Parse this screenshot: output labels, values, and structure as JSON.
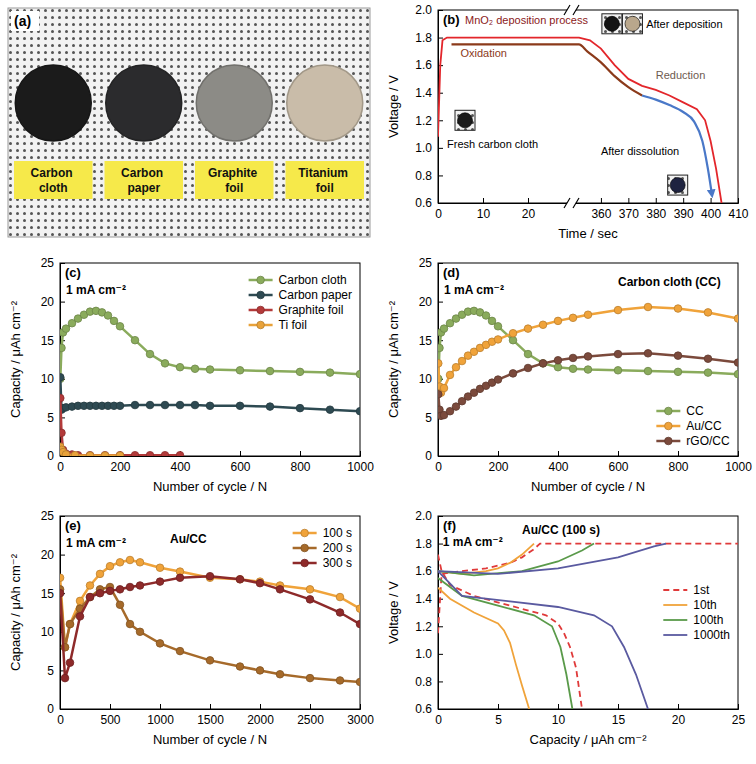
{
  "chart_data": [
    {
      "type": "photo",
      "panel_label": "(a)",
      "items": [
        {
          "label": "Carbon cloth",
          "color": "#1b1b1b"
        },
        {
          "label": "Carbon paper",
          "color": "#2b2b2d"
        },
        {
          "label": "Graphite foil",
          "color": "#8c8b86"
        },
        {
          "label": "Titanium foil",
          "color": "#c9bca9"
        }
      ]
    },
    {
      "type": "line",
      "panel_label": "(b)",
      "x_label": "Time / sec",
      "y_label": "Voltage / V",
      "xlim": [
        0,
        410
      ],
      "x_break": [
        28,
        352
      ],
      "xticks": [
        0,
        10,
        20,
        360,
        370,
        380,
        390,
        400,
        410
      ],
      "ylim": [
        0.6,
        2.0
      ],
      "yticks": [
        0.6,
        0.8,
        {
          "value": 1,
          "label": "1.0"
        },
        1.2,
        1.4,
        1.6,
        1.8,
        {
          "value": 2,
          "label": "2.0"
        }
      ],
      "series": [
        {
          "color": "#e3262b",
          "line_style": "solid",
          "x": [
            0,
            0.5,
            1,
            2,
            25,
            352,
            356,
            360,
            365,
            370,
            375,
            380,
            385,
            390,
            395,
            398,
            400,
            402,
            404
          ],
          "values": [
            1.08,
            1.6,
            1.78,
            1.8,
            1.8,
            1.8,
            1.78,
            1.72,
            1.6,
            1.5,
            1.45,
            1.42,
            1.38,
            1.33,
            1.28,
            1.2,
            1.05,
            0.85,
            0.6
          ]
        }
      ],
      "arrows": [
        {
          "color": "#8b3a1a",
          "x": [
            3,
            27,
            350,
            355,
            360,
            365,
            370,
            375
          ],
          "y": [
            1.75,
            1.75,
            1.75,
            1.7,
            1.62,
            1.52,
            1.44,
            1.38
          ]
        },
        {
          "color": "#4a78c8",
          "marker": "arrow",
          "x": [
            375,
            380,
            385,
            390,
            394,
            397,
            399,
            400.5
          ],
          "y": [
            1.38,
            1.35,
            1.31,
            1.26,
            1.19,
            1.05,
            0.85,
            0.66
          ]
        }
      ],
      "annotations": [
        {
          "text": "MnO₂ deposition process",
          "x": 6,
          "y": 1.9,
          "color": "#8b1a1a"
        },
        {
          "text": "Oxidation",
          "x": 5,
          "y": 1.66,
          "color": "#8b3a1a"
        },
        {
          "text": "Reduction",
          "x": 380,
          "y": 1.5,
          "color": "#6e5a50"
        },
        {
          "text": "Fresh carbon cloth",
          "x": 2,
          "y": 1.0,
          "color": "#000000",
          "photos": [
            {
              "x": 6,
              "y": 1.2,
              "color": "#1b1b1b"
            }
          ]
        },
        {
          "text": "After deposition",
          "x": 376.5,
          "y": 1.87,
          "color": "#000000",
          "photos": [
            {
              "x": 364,
              "y": 1.9,
              "color": "#141414"
            },
            {
              "x": 371.5,
              "y": 1.9,
              "color": "#b9a78c"
            }
          ]
        },
        {
          "text": "After dissolution",
          "x": 360,
          "y": 0.95,
          "color": "#000000",
          "photos": [
            {
              "x": 388,
              "y": 0.73,
              "color": "#1e2340"
            }
          ]
        }
      ]
    },
    {
      "type": "line",
      "panel_label": "(c)",
      "x_label": "Number of cycle  /  N",
      "y_label": "Capacity / μAh cm⁻²",
      "xlim": [
        0,
        1000
      ],
      "xticks": [
        0,
        200,
        400,
        600,
        800,
        1000
      ],
      "ylim": [
        0,
        25
      ],
      "yticks": [
        0,
        5,
        10,
        15,
        20,
        25
      ],
      "legend": "upper right",
      "series": [
        {
          "name": "Carbon cloth",
          "color": "#8aab5c",
          "marker": "circle",
          "line_style": "solid",
          "x": [
            1,
            5,
            10,
            20,
            40,
            60,
            80,
            100,
            120,
            140,
            160,
            180,
            200,
            250,
            300,
            350,
            400,
            450,
            500,
            600,
            700,
            800,
            900,
            1000
          ],
          "values": [
            10,
            14,
            16,
            16.5,
            17.2,
            17.8,
            18.3,
            18.7,
            18.8,
            18.6,
            18.2,
            17.5,
            16.8,
            15,
            13.2,
            12,
            11.5,
            11.3,
            11.2,
            11.1,
            11,
            10.9,
            10.8,
            10.6
          ]
        },
        {
          "name": "Carbon paper",
          "color": "#2e4a52",
          "marker": "circle",
          "line_style": "solid",
          "x": [
            1,
            5,
            10,
            20,
            40,
            60,
            80,
            100,
            120,
            140,
            160,
            180,
            200,
            250,
            300,
            350,
            400,
            450,
            500,
            600,
            700,
            800,
            900,
            1000
          ],
          "values": [
            10.2,
            6.0,
            6.2,
            6.3,
            6.4,
            6.5,
            6.5,
            6.5,
            6.5,
            6.5,
            6.5,
            6.5,
            6.5,
            6.6,
            6.6,
            6.6,
            6.6,
            6.6,
            6.5,
            6.5,
            6.4,
            6.2,
            6.0,
            5.8
          ]
        },
        {
          "name": "Graphite foil",
          "color": "#b33a3a",
          "marker": "circle",
          "line_style": "solid",
          "x": [
            1,
            5,
            10,
            20,
            40,
            60,
            100,
            150,
            200,
            250,
            300,
            350,
            400
          ],
          "values": [
            7.5,
            3,
            0.8,
            0.3,
            0.2,
            0.1,
            0.1,
            0.1,
            0.1,
            0.1,
            0.1,
            0.1,
            0.1
          ]
        },
        {
          "name": "Ti foil",
          "color": "#e8a23a",
          "marker": "circle",
          "line_style": "solid",
          "x": [
            1,
            5,
            10,
            20,
            50,
            100,
            150,
            200
          ],
          "values": [
            1.2,
            0.8,
            0.5,
            0.2,
            0.1,
            0.05,
            0.05,
            0.05
          ]
        }
      ],
      "annotations": [
        {
          "text": "1 mA cm⁻²",
          "x": 20,
          "y": 21
        }
      ]
    },
    {
      "type": "line",
      "panel_label": "(d)",
      "x_label": "Number of cycle  /  N",
      "y_label": "Capacity / μAh cm⁻²",
      "xlim": [
        0,
        1000
      ],
      "xticks": [
        0,
        200,
        400,
        600,
        800,
        1000
      ],
      "ylim": [
        0,
        25
      ],
      "yticks": [
        0,
        5,
        10,
        15,
        20,
        25
      ],
      "legend": "lower right",
      "series": [
        {
          "name": "CC",
          "color": "#8aab5c",
          "marker": "circle",
          "line_style": "solid",
          "x": [
            1,
            5,
            10,
            20,
            40,
            60,
            80,
            100,
            120,
            140,
            160,
            180,
            200,
            250,
            300,
            350,
            400,
            450,
            500,
            600,
            700,
            800,
            900,
            1000
          ],
          "values": [
            10,
            14,
            16,
            16.5,
            17.2,
            17.8,
            18.3,
            18.7,
            18.8,
            18.6,
            18.2,
            17.5,
            16.8,
            15,
            13.2,
            12,
            11.5,
            11.3,
            11.2,
            11.1,
            11,
            10.9,
            10.8,
            10.6
          ]
        },
        {
          "name": "Au/CC",
          "color": "#f0a33a",
          "marker": "circle",
          "line_style": "solid",
          "x": [
            1,
            5,
            10,
            20,
            40,
            60,
            80,
            100,
            120,
            140,
            160,
            180,
            200,
            250,
            300,
            350,
            400,
            450,
            500,
            600,
            700,
            800,
            900,
            1000
          ],
          "values": [
            12,
            9,
            8.2,
            8.8,
            10.5,
            11.5,
            12.3,
            13,
            13.5,
            14,
            14.4,
            14.8,
            15.1,
            15.9,
            16.5,
            17,
            17.5,
            17.9,
            18.3,
            18.9,
            19.3,
            19.1,
            18.6,
            17.8
          ]
        },
        {
          "name": "rGO/CC",
          "color": "#7b4a3c",
          "marker": "circle",
          "line_style": "solid",
          "x": [
            1,
            5,
            10,
            20,
            40,
            60,
            80,
            100,
            120,
            140,
            160,
            180,
            200,
            250,
            300,
            350,
            400,
            450,
            500,
            600,
            700,
            800,
            900,
            1000
          ],
          "values": [
            8,
            6,
            5.2,
            5.3,
            5.8,
            6.4,
            7.1,
            7.7,
            8.2,
            8.7,
            9.1,
            9.5,
            9.9,
            10.7,
            11.4,
            12,
            12.4,
            12.7,
            12.9,
            13.2,
            13.3,
            13.0,
            12.6,
            12.1
          ]
        }
      ],
      "annotations": [
        {
          "text": "1 mA cm⁻²",
          "x": 20,
          "y": 21
        },
        {
          "text": "Carbon cloth (CC)",
          "x": 600,
          "y": 22
        }
      ]
    },
    {
      "type": "line",
      "panel_label": "(e)",
      "x_label": "Number of cycle  /  N",
      "y_label": "Capacity / μAh cm⁻²",
      "xlim": [
        0,
        3000
      ],
      "xticks": [
        0,
        500,
        1000,
        1500,
        2000,
        2500,
        3000
      ],
      "ylim": [
        0,
        25
      ],
      "yticks": [
        0,
        5,
        10,
        15,
        20,
        25
      ],
      "legend": "upper right",
      "series": [
        {
          "name": "100 s",
          "color": "#f0a33a",
          "marker": "circle",
          "line_style": "solid",
          "x": [
            1,
            50,
            100,
            200,
            300,
            400,
            500,
            600,
            700,
            800,
            1000,
            1200,
            1500,
            1800,
            2000,
            2200,
            2500,
            2800,
            3000
          ],
          "values": [
            17,
            8,
            11,
            14,
            16,
            17.5,
            18.5,
            19,
            19.3,
            19,
            18.3,
            17.8,
            17,
            16.8,
            16.5,
            16,
            15.5,
            14.5,
            13
          ]
        },
        {
          "name": "200 s",
          "color": "#a66a2a",
          "marker": "circle",
          "line_style": "solid",
          "x": [
            1,
            50,
            100,
            200,
            300,
            400,
            500,
            600,
            700,
            800,
            1000,
            1200,
            1500,
            1800,
            2000,
            2200,
            2500,
            2800,
            3000
          ],
          "values": [
            15.5,
            8,
            11,
            13,
            14.5,
            15.5,
            15.8,
            13.5,
            11,
            10,
            8.5,
            7.5,
            6.3,
            5.5,
            5,
            4.5,
            4,
            3.7,
            3.5
          ]
        },
        {
          "name": "300 s",
          "color": "#8e2a2a",
          "marker": "circle",
          "line_style": "solid",
          "x": [
            1,
            50,
            100,
            200,
            300,
            400,
            500,
            600,
            700,
            800,
            1000,
            1200,
            1500,
            1800,
            2000,
            2200,
            2500,
            2800,
            3000
          ],
          "values": [
            15,
            4,
            6,
            12,
            14.5,
            15,
            15.3,
            15.5,
            15.8,
            16,
            16.5,
            17,
            17.2,
            16.8,
            16.3,
            15.5,
            14.2,
            12.5,
            11
          ]
        }
      ],
      "annotations": [
        {
          "text": "1 mA cm⁻²",
          "x": 60,
          "y": 21
        },
        {
          "text": "Au/CC",
          "x": 1100,
          "y": 21.5
        }
      ]
    },
    {
      "type": "line",
      "panel_label": "(f)",
      "x_label": "Capacity / μAh cm⁻²",
      "y_label": "Voltage / V",
      "xlim": [
        0,
        25
      ],
      "xticks": [
        0,
        5,
        10,
        15,
        20,
        25
      ],
      "ylim": [
        0.6,
        2.0
      ],
      "yticks": [
        0.6,
        0.8,
        {
          "value": 1,
          "label": "1.0"
        },
        1.2,
        1.4,
        1.6,
        1.8,
        {
          "value": 2,
          "label": "2.0"
        }
      ],
      "legend": "right",
      "series": [
        {
          "name": "1st",
          "color": "#e03a3a",
          "line_style": "dashed",
          "x": [
            0,
            0.3,
            1,
            2,
            4,
            6,
            7,
            8,
            8.5,
            25,
            null,
            0,
            0.3,
            1,
            3,
            6,
            9,
            10,
            10.5,
            11,
            11.5,
            12
          ],
          "values": [
            1.15,
            1.58,
            1.59,
            1.6,
            1.62,
            1.66,
            1.7,
            1.76,
            1.8,
            1.8,
            null,
            1.72,
            1.6,
            1.5,
            1.42,
            1.35,
            1.28,
            1.22,
            1.15,
            1.05,
            0.9,
            0.6
          ]
        },
        {
          "name": "10th",
          "color": "#f0a33a",
          "line_style": "solid",
          "x": [
            0,
            2,
            4,
            5,
            6,
            7,
            8,
            null,
            0,
            1,
            3,
            5,
            5.5,
            6,
            6.5,
            7,
            7.6
          ],
          "values": [
            1.6,
            1.58,
            1.6,
            1.62,
            1.66,
            1.72,
            1.8,
            null,
            1.48,
            1.4,
            1.3,
            1.22,
            1.17,
            1.08,
            0.92,
            0.77,
            0.6
          ]
        },
        {
          "name": "100th",
          "color": "#5a9a4a",
          "line_style": "solid",
          "x": [
            0,
            3,
            7,
            10,
            12,
            13,
            null,
            0,
            2,
            5,
            8,
            9.5,
            10.2,
            10.7,
            11.2
          ],
          "values": [
            1.6,
            1.57,
            1.6,
            1.67,
            1.75,
            1.8,
            null,
            1.55,
            1.42,
            1.35,
            1.28,
            1.2,
            1.05,
            0.85,
            0.6
          ]
        },
        {
          "name": "1000th",
          "color": "#5a5aa0",
          "line_style": "solid",
          "x": [
            0,
            5,
            10,
            15,
            18,
            19,
            null,
            0,
            2,
            6,
            10,
            13,
            14.5,
            15.5,
            16.5,
            17.5
          ],
          "values": [
            1.6,
            1.58,
            1.62,
            1.7,
            1.78,
            1.8,
            null,
            1.6,
            1.42,
            1.38,
            1.34,
            1.28,
            1.2,
            1.05,
            0.85,
            0.6
          ]
        }
      ],
      "annotations": [
        {
          "text": "1 mA cm⁻²",
          "x": 0.4,
          "y": 1.78
        },
        {
          "text": "Au/CC (100 s)",
          "x": 7,
          "y": 1.87
        }
      ]
    }
  ]
}
